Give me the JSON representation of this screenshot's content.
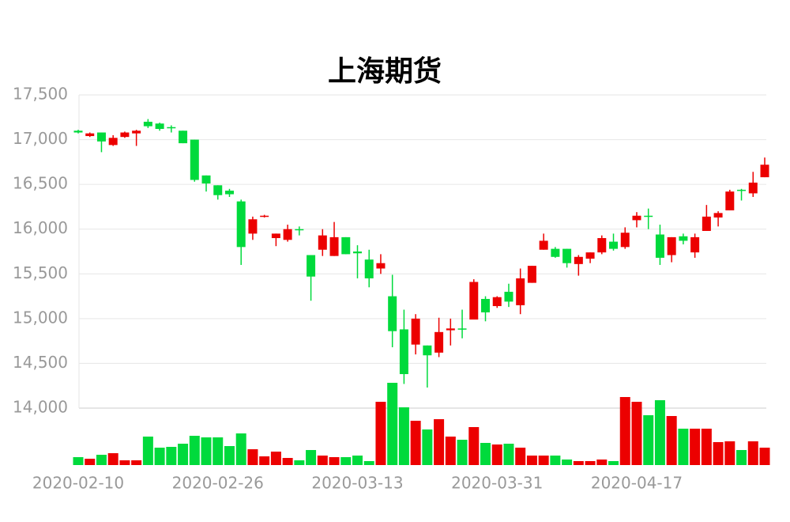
{
  "chart_data": {
    "type": "candlestick",
    "title": "上海期货",
    "categories": [
      "2020-02-10",
      null,
      null,
      null,
      null,
      null,
      null,
      null,
      null,
      null,
      null,
      null,
      "2020-02-26",
      null,
      null,
      null,
      null,
      null,
      null,
      null,
      null,
      null,
      null,
      null,
      "2020-03-13",
      null,
      null,
      null,
      null,
      null,
      null,
      null,
      null,
      null,
      null,
      null,
      "2020-03-31",
      null,
      null,
      null,
      null,
      null,
      null,
      null,
      null,
      null,
      null,
      null,
      "2020-04-17",
      null,
      null,
      null,
      null,
      null,
      null,
      null,
      null,
      null,
      null,
      null
    ],
    "open": [
      17100,
      17040,
      17080,
      16940,
      17030,
      17070,
      17200,
      17180,
      17140,
      17100,
      17000,
      16600,
      16490,
      16430,
      16310,
      15950,
      16140,
      15900,
      15880,
      16000,
      15710,
      15770,
      15700,
      15910,
      15750,
      15660,
      15560,
      15250,
      14880,
      14710,
      14700,
      14620,
      14870,
      14890,
      14990,
      15220,
      15140,
      15300,
      15150,
      15400,
      15770,
      15780,
      15780,
      15610,
      15670,
      15740,
      15860,
      15800,
      16100,
      16150,
      15940,
      15710,
      15920,
      15740,
      15980,
      16130,
      16210,
      16440,
      16400,
      16580
    ],
    "close": [
      17080,
      17070,
      16980,
      17020,
      17080,
      17100,
      17150,
      17120,
      17130,
      16960,
      16550,
      16510,
      16380,
      16390,
      15800,
      16110,
      16150,
      15950,
      16000,
      15990,
      15470,
      15930,
      15910,
      15720,
      15730,
      15450,
      15620,
      14860,
      14380,
      15000,
      14590,
      14850,
      14890,
      14880,
      15410,
      15070,
      15240,
      15190,
      15450,
      15590,
      15870,
      15690,
      15620,
      15690,
      15740,
      15900,
      15780,
      15960,
      16150,
      16140,
      15680,
      15910,
      15870,
      15910,
      16140,
      16180,
      16420,
      16430,
      16520,
      16720
    ],
    "high": [
      17110,
      17080,
      17080,
      17050,
      17090,
      17110,
      17230,
      17190,
      17160,
      17100,
      17000,
      16600,
      16490,
      16450,
      16330,
      16140,
      16160,
      15950,
      16050,
      16030,
      15710,
      16000,
      16080,
      15910,
      15820,
      15770,
      15720,
      15490,
      15100,
      15050,
      14700,
      15010,
      15000,
      15100,
      15440,
      15250,
      15250,
      15390,
      15560,
      15590,
      15950,
      15800,
      15780,
      15710,
      15740,
      15930,
      15950,
      16020,
      16190,
      16230,
      16050,
      15910,
      15950,
      15950,
      16270,
      16200,
      16440,
      16450,
      16640,
      16800
    ],
    "low": [
      17070,
      17030,
      16860,
      16930,
      17020,
      16930,
      17130,
      17100,
      17080,
      16960,
      16530,
      16420,
      16330,
      16360,
      15600,
      15880,
      16130,
      15810,
      15860,
      15930,
      15200,
      15700,
      15700,
      15720,
      15450,
      15350,
      15500,
      14680,
      14270,
      14600,
      14230,
      14570,
      14700,
      14780,
      14990,
      14970,
      15120,
      15130,
      15050,
      15400,
      15770,
      15680,
      15570,
      15480,
      15620,
      15720,
      15760,
      15780,
      16020,
      16000,
      15600,
      15630,
      15830,
      15680,
      15980,
      16030,
      16210,
      16320,
      16360,
      16580
    ],
    "volume": [
      10,
      8,
      13,
      15,
      6,
      6,
      36,
      22,
      23,
      27,
      37,
      35,
      35,
      24,
      40,
      20,
      11,
      17,
      9,
      6,
      19,
      12,
      10,
      10,
      12,
      5,
      80,
      104,
      73,
      56,
      45,
      58,
      36,
      32,
      48,
      28,
      26,
      27,
      22,
      12,
      12,
      12,
      7,
      5,
      5,
      7,
      5,
      86,
      80,
      63,
      82,
      62,
      46,
      46,
      46,
      29,
      30,
      19,
      30,
      22
    ],
    "up_color": "#ec0000",
    "down_color": "#00da3c",
    "ylim": [
      14000,
      17500
    ],
    "yticks": [
      {
        "value": 14000,
        "label": "14,000"
      },
      {
        "value": 14500,
        "label": "14,500"
      },
      {
        "value": 15000,
        "label": "15,000"
      },
      {
        "value": 15500,
        "label": "15,500"
      },
      {
        "value": 16000,
        "label": "16,000"
      },
      {
        "value": 16500,
        "label": "16,500"
      },
      {
        "value": 17000,
        "label": "17,000"
      },
      {
        "value": 17500,
        "label": "17,500"
      }
    ],
    "grid": true
  }
}
